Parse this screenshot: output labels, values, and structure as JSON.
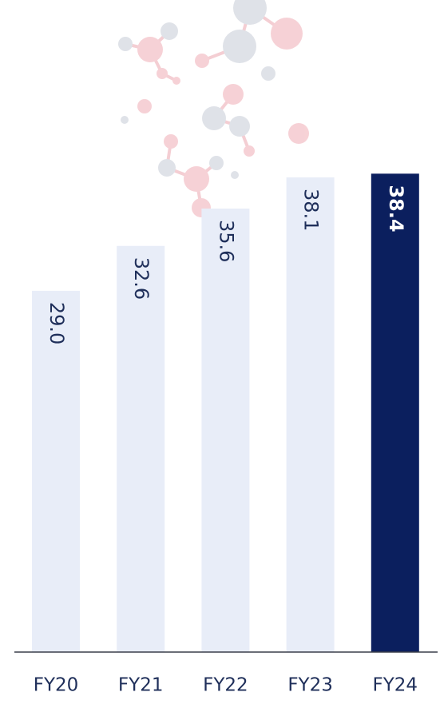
{
  "chart_data": {
    "type": "bar",
    "categories": [
      "FY20",
      "FY21",
      "FY22",
      "FY23",
      "FY24"
    ],
    "values": [
      29.0,
      32.6,
      35.6,
      38.1,
      38.4
    ],
    "value_labels": [
      "29.0",
      "32.6",
      "35.6",
      "38.1",
      "38.4"
    ],
    "colors": [
      "#e8edf8",
      "#e8edf8",
      "#e8edf8",
      "#e8edf8",
      "#0b1f5e"
    ],
    "ylim": [
      0,
      52
    ]
  }
}
